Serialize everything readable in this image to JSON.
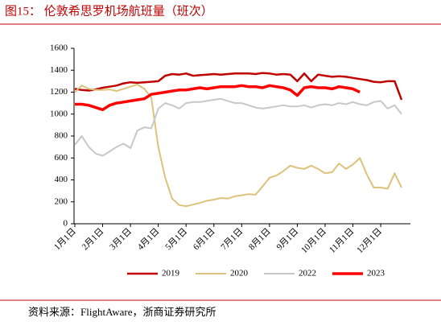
{
  "chart_data": {
    "type": "line",
    "title": "图15：  伦敦希思罗机场航班量（班次）",
    "source": "资料来源：FlightAware，浙商证券研究所",
    "categories": [
      "1月1日",
      null,
      null,
      null,
      "2月1日",
      null,
      null,
      null,
      "3月1日",
      null,
      null,
      null,
      "4月1日",
      null,
      null,
      null,
      "5月1日",
      null,
      null,
      null,
      "6月1日",
      null,
      null,
      null,
      "7月1日",
      null,
      null,
      null,
      "8月1日",
      null,
      null,
      null,
      "9月1日",
      null,
      null,
      null,
      "10月1日",
      null,
      null,
      null,
      "11月1日",
      null,
      null,
      null,
      "12月1日",
      null,
      null,
      null
    ],
    "series": [
      {
        "name": "2019",
        "color": "#c00000",
        "width": 2.5,
        "values": [
          1230,
          1220,
          1215,
          1225,
          1240,
          1250,
          1260,
          1280,
          1290,
          1285,
          1290,
          1295,
          1300,
          1350,
          1365,
          1360,
          1370,
          1350,
          1355,
          1360,
          1365,
          1360,
          1365,
          1370,
          1370,
          1370,
          1365,
          1375,
          1370,
          1360,
          1365,
          1360,
          1300,
          1370,
          1300,
          1360,
          1350,
          1340,
          1345,
          1340,
          1330,
          1320,
          1310,
          1295,
          1290,
          1300,
          1300,
          1130
        ]
      },
      {
        "name": "2020",
        "color": "#dcc27a",
        "width": 2,
        "values": [
          1200,
          1260,
          1230,
          1220,
          1220,
          1225,
          1210,
          1230,
          1250,
          1270,
          1230,
          1150,
          700,
          420,
          230,
          170,
          160,
          175,
          190,
          210,
          220,
          235,
          230,
          250,
          260,
          270,
          265,
          340,
          420,
          440,
          480,
          530,
          510,
          500,
          530,
          500,
          460,
          470,
          550,
          500,
          540,
          600,
          450,
          330,
          330,
          320,
          460,
          330
        ]
      },
      {
        "name": "2022",
        "color": "#c8c8c8",
        "width": 2,
        "values": [
          720,
          800,
          700,
          640,
          620,
          660,
          700,
          730,
          690,
          850,
          880,
          870,
          1050,
          1100,
          1080,
          1050,
          1100,
          1110,
          1110,
          1120,
          1130,
          1140,
          1120,
          1100,
          1100,
          1080,
          1060,
          1050,
          1060,
          1070,
          1080,
          1070,
          1070,
          1080,
          1060,
          1080,
          1090,
          1080,
          1100,
          1090,
          1110,
          1090,
          1080,
          1110,
          1120,
          1050,
          1080,
          1000
        ]
      },
      {
        "name": "2023",
        "color": "#ff0000",
        "width": 3.5,
        "values": [
          1090,
          1090,
          1080,
          1060,
          1040,
          1080,
          1100,
          1110,
          1120,
          1130,
          1140,
          1180,
          1190,
          1200,
          1210,
          1220,
          1220,
          1230,
          1240,
          1230,
          1240,
          1250,
          1250,
          1250,
          1260,
          1250,
          1250,
          1240,
          1260,
          1250,
          1240,
          1220,
          1170,
          1240,
          1250,
          1240,
          1240,
          1230,
          1250,
          1240,
          1230,
          1200,
          null,
          null,
          null,
          null,
          null,
          null
        ]
      }
    ],
    "ylim": [
      0,
      1600
    ],
    "yticks": [
      0,
      200,
      400,
      600,
      800,
      1000,
      1200,
      1400,
      1600
    ],
    "grid": false
  }
}
